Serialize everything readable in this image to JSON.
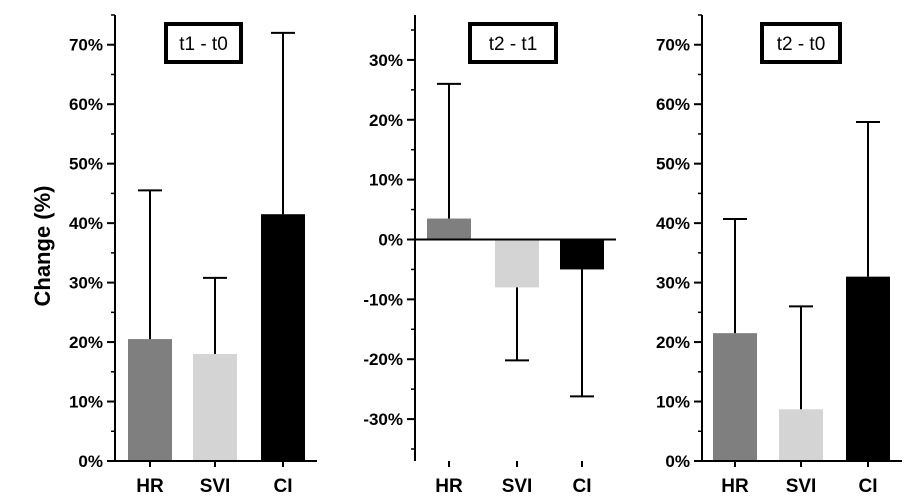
{
  "shared_ylabel": "Change (%)",
  "colors": {
    "HR": "#7f7f7f",
    "SVI": "#d4d4d4",
    "CI": "#000000"
  },
  "chart_data": [
    {
      "type": "bar",
      "title": "t1 - t0",
      "categories": [
        "HR",
        "SVI",
        "CI"
      ],
      "values": [
        20.5,
        18,
        41.5
      ],
      "error_upper": [
        45.5,
        30.8,
        72
      ],
      "ylim": [
        0,
        75
      ],
      "yticks": [
        0,
        10,
        20,
        30,
        40,
        50,
        60,
        70
      ],
      "ytick_labels": [
        "0%",
        "10%",
        "20%",
        "30%",
        "40%",
        "50%",
        "60%",
        "70%"
      ],
      "minor_step": 5,
      "ylabel": "Change (%)"
    },
    {
      "type": "bar",
      "title": "t2 - t1",
      "categories": [
        "HR",
        "SVI",
        "CI"
      ],
      "values": [
        3.5,
        -8,
        -5
      ],
      "error_upper": [
        26,
        null,
        null
      ],
      "error_lower": [
        null,
        -20.2,
        -26.2
      ],
      "ylim": [
        -37,
        37.5
      ],
      "yticks": [
        -30,
        -20,
        -10,
        0,
        10,
        20,
        30
      ],
      "ytick_labels": [
        "-30%",
        "-20%",
        "-10%",
        "0%",
        "10%",
        "20%",
        "30%"
      ],
      "minor_step": 5,
      "ylabel": ""
    },
    {
      "type": "bar",
      "title": "t2 - t0",
      "categories": [
        "HR",
        "SVI",
        "CI"
      ],
      "values": [
        21.5,
        8.7,
        31
      ],
      "error_upper": [
        40.7,
        26,
        57
      ],
      "ylim": [
        0,
        75
      ],
      "yticks": [
        0,
        10,
        20,
        30,
        40,
        50,
        60,
        70
      ],
      "ytick_labels": [
        "0%",
        "10%",
        "20%",
        "30%",
        "40%",
        "50%",
        "60%",
        "70%"
      ],
      "minor_step": 5,
      "ylabel": ""
    }
  ]
}
